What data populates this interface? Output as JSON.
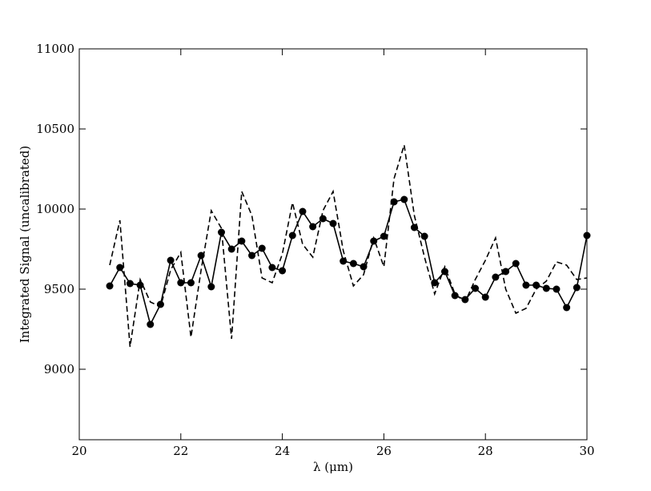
{
  "chart_data": {
    "type": "line",
    "x_label": "λ (μm)",
    "y_label": "Integrated Signal (uncalibrated)",
    "x": [
      20.6,
      20.8,
      21.0,
      21.2,
      21.4,
      21.6,
      21.8,
      22.0,
      22.2,
      22.4,
      22.6,
      22.8,
      23.0,
      23.2,
      23.4,
      23.6,
      23.8,
      24.0,
      24.2,
      24.4,
      24.6,
      24.8,
      25.0,
      25.2,
      25.4,
      25.6,
      25.8,
      26.0,
      26.2,
      26.4,
      26.6,
      26.8,
      27.0,
      27.2,
      27.4,
      27.6,
      27.8,
      28.0,
      28.2,
      28.4,
      28.6,
      28.8,
      29.0,
      29.2,
      29.4,
      29.6,
      29.8,
      30.0
    ],
    "series": [
      {
        "color": "#000000",
        "style": "solid",
        "marker": true,
        "values": [
          9520,
          9635,
          9535,
          9525,
          9280,
          9405,
          9680,
          9540,
          9540,
          9710,
          9515,
          9855,
          9750,
          9800,
          9710,
          9755,
          9635,
          9615,
          9835,
          9985,
          9890,
          9940,
          9910,
          9675,
          9660,
          9640,
          9800,
          9830,
          10045,
          10060,
          9885,
          9830,
          9540,
          9610,
          9460,
          9435,
          9505,
          9450,
          9575,
          9610,
          9660,
          9525,
          9525,
          9505,
          9500,
          9385,
          9510,
          9835
        ]
      },
      {
        "color": "#000000",
        "style": "dashed",
        "marker": false,
        "values": [
          9650,
          9930,
          9140,
          9560,
          9420,
          9390,
          9620,
          9730,
          9200,
          9620,
          9990,
          9880,
          9190,
          10110,
          9960,
          9570,
          9540,
          9720,
          10040,
          9780,
          9700,
          9990,
          10110,
          9740,
          9520,
          9590,
          9820,
          9640,
          10190,
          10400,
          9960,
          9700,
          9470,
          9640,
          9470,
          9420,
          9560,
          9680,
          9820,
          9500,
          9350,
          9380,
          9500,
          9550,
          9670,
          9650,
          9560,
          9570
        ]
      }
    ],
    "xlim": [
      20,
      30
    ],
    "xticks": [
      20,
      22,
      24,
      26,
      28,
      30
    ],
    "ylim": [
      8560,
      11000
    ],
    "yticks": [
      9000,
      9500,
      10000,
      10500,
      11000
    ],
    "grid": false
  }
}
